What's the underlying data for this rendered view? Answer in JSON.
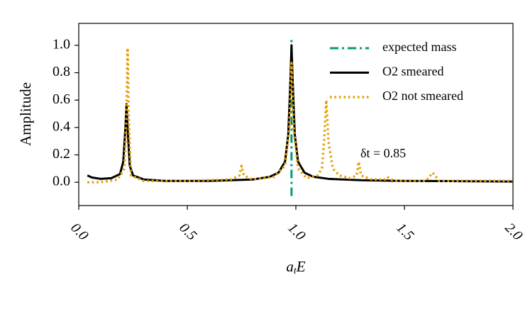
{
  "chart_data": {
    "type": "line",
    "x_label": [
      "a",
      "t",
      "E"
    ],
    "y_label": "Amplitude",
    "annotation": "δt = 0.85",
    "xlim": [
      0,
      2.0
    ],
    "ylim": [
      -0.17,
      1.16
    ],
    "xticks": [
      {
        "value": 0,
        "label": "0.0"
      },
      {
        "value": 0.5,
        "label": "0.5"
      },
      {
        "value": 1,
        "label": "1.0"
      },
      {
        "value": 1.5,
        "label": "1.5"
      },
      {
        "value": 2,
        "label": "2.0"
      }
    ],
    "yticks": [
      {
        "value": 0,
        "label": "0.0"
      },
      {
        "value": 0.2,
        "label": "0.2"
      },
      {
        "value": 0.4,
        "label": "0.4"
      },
      {
        "value": 0.6,
        "label": "0.6"
      },
      {
        "value": 0.8,
        "label": "0.8"
      },
      {
        "value": 1,
        "label": "1.0"
      }
    ],
    "legend": "upper right",
    "series": [
      {
        "name": "expected mass",
        "color": "#009e73",
        "style": "dashdot",
        "x": [
          0.98,
          0.98
        ],
        "values": [
          -0.1,
          1.05
        ]
      },
      {
        "name": "O2 smeared",
        "color": "#000000",
        "style": "solid",
        "x": [
          0.04,
          0.06,
          0.1,
          0.15,
          0.19,
          0.205,
          0.215,
          0.22,
          0.225,
          0.235,
          0.25,
          0.3,
          0.4,
          0.5,
          0.6,
          0.7,
          0.8,
          0.88,
          0.92,
          0.95,
          0.965,
          0.975,
          0.98,
          0.985,
          0.995,
          1.01,
          1.04,
          1.08,
          1.15,
          1.3,
          1.5,
          1.75,
          2.0
        ],
        "values": [
          0.05,
          0.035,
          0.025,
          0.03,
          0.06,
          0.15,
          0.4,
          0.57,
          0.4,
          0.12,
          0.05,
          0.02,
          0.01,
          0.01,
          0.01,
          0.015,
          0.02,
          0.04,
          0.07,
          0.15,
          0.35,
          0.75,
          1.0,
          0.75,
          0.35,
          0.15,
          0.07,
          0.04,
          0.025,
          0.015,
          0.01,
          0.008,
          0.005
        ]
      },
      {
        "name": "O2 not smeared",
        "color": "#e69f00",
        "style": "dotted",
        "x": [
          0.04,
          0.1,
          0.18,
          0.21,
          0.22,
          0.225,
          0.23,
          0.24,
          0.3,
          0.5,
          0.7,
          0.74,
          0.75,
          0.76,
          0.8,
          0.9,
          0.95,
          0.97,
          0.98,
          0.99,
          1.01,
          1.05,
          1.1,
          1.12,
          1.13,
          1.14,
          1.15,
          1.17,
          1.2,
          1.25,
          1.28,
          1.29,
          1.3,
          1.35,
          1.41,
          1.42,
          1.45,
          1.6,
          1.63,
          1.66,
          1.8,
          2.0
        ],
        "values": [
          0.0,
          0.0,
          0.02,
          0.1,
          0.5,
          0.98,
          0.5,
          0.05,
          0.01,
          0.01,
          0.02,
          0.05,
          0.12,
          0.05,
          0.02,
          0.04,
          0.12,
          0.4,
          0.87,
          0.4,
          0.1,
          0.03,
          0.05,
          0.1,
          0.3,
          0.6,
          0.3,
          0.1,
          0.05,
          0.03,
          0.05,
          0.15,
          0.05,
          0.02,
          0.02,
          0.04,
          0.01,
          0.01,
          0.07,
          0.01,
          0.01,
          0.01
        ]
      }
    ]
  }
}
